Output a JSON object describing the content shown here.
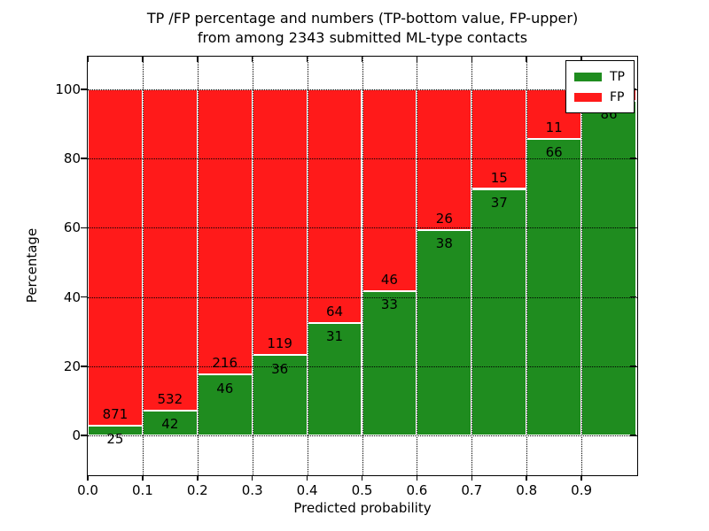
{
  "title": {
    "line1": "TP /FP percentage and numbers (TP-bottom value, FP-upper)",
    "line2": "from among 2343 submitted ML-type contacts"
  },
  "axes": {
    "xlabel": "Predicted probability",
    "ylabel": "Percentage",
    "xticks": [
      "0.0",
      "0.1",
      "0.2",
      "0.3",
      "0.4",
      "0.5",
      "0.6",
      "0.7",
      "0.8",
      "0.9"
    ],
    "yticks": [
      "0",
      "20",
      "40",
      "60",
      "80",
      "100"
    ]
  },
  "legend": {
    "items": [
      {
        "label": "TP",
        "color": "#1f8c1f"
      },
      {
        "label": "FP",
        "color": "#ff1a1a"
      }
    ]
  },
  "colors": {
    "tp": "#1f8c1f",
    "fp": "#ff1a1a",
    "bar_edge": "#ffffff",
    "grid": "#000000",
    "background": "#ffffff"
  },
  "chart_data": {
    "type": "bar",
    "stacked": true,
    "title": "TP /FP percentage and numbers (TP-bottom value, FP-upper)\nfrom among 2343 submitted ML-type contacts",
    "xlabel": "Predicted probability",
    "ylabel": "Percentage",
    "bin_starts": [
      0.0,
      0.1,
      0.2,
      0.3,
      0.4,
      0.5,
      0.6,
      0.7,
      0.8,
      0.9
    ],
    "bin_width": 0.1,
    "series": [
      {
        "name": "TP",
        "color": "#1f8c1f",
        "counts": [
          25,
          42,
          46,
          36,
          31,
          33,
          38,
          37,
          66,
          86
        ],
        "percent": [
          2.8,
          7.3,
          17.6,
          23.2,
          32.6,
          41.8,
          59.4,
          71.2,
          85.7,
          96.6
        ]
      },
      {
        "name": "FP",
        "color": "#ff1a1a",
        "counts": [
          871,
          532,
          216,
          119,
          64,
          46,
          26,
          15,
          11,
          null
        ],
        "percent": [
          97.2,
          92.7,
          82.4,
          76.8,
          67.4,
          58.2,
          40.6,
          28.8,
          14.3,
          3.4
        ]
      }
    ],
    "xlim": [
      0,
      1.0
    ],
    "ylim": [
      -11.2,
      109.4
    ],
    "grid": true,
    "grid_style": "dotted",
    "legend_position": "upper right"
  }
}
